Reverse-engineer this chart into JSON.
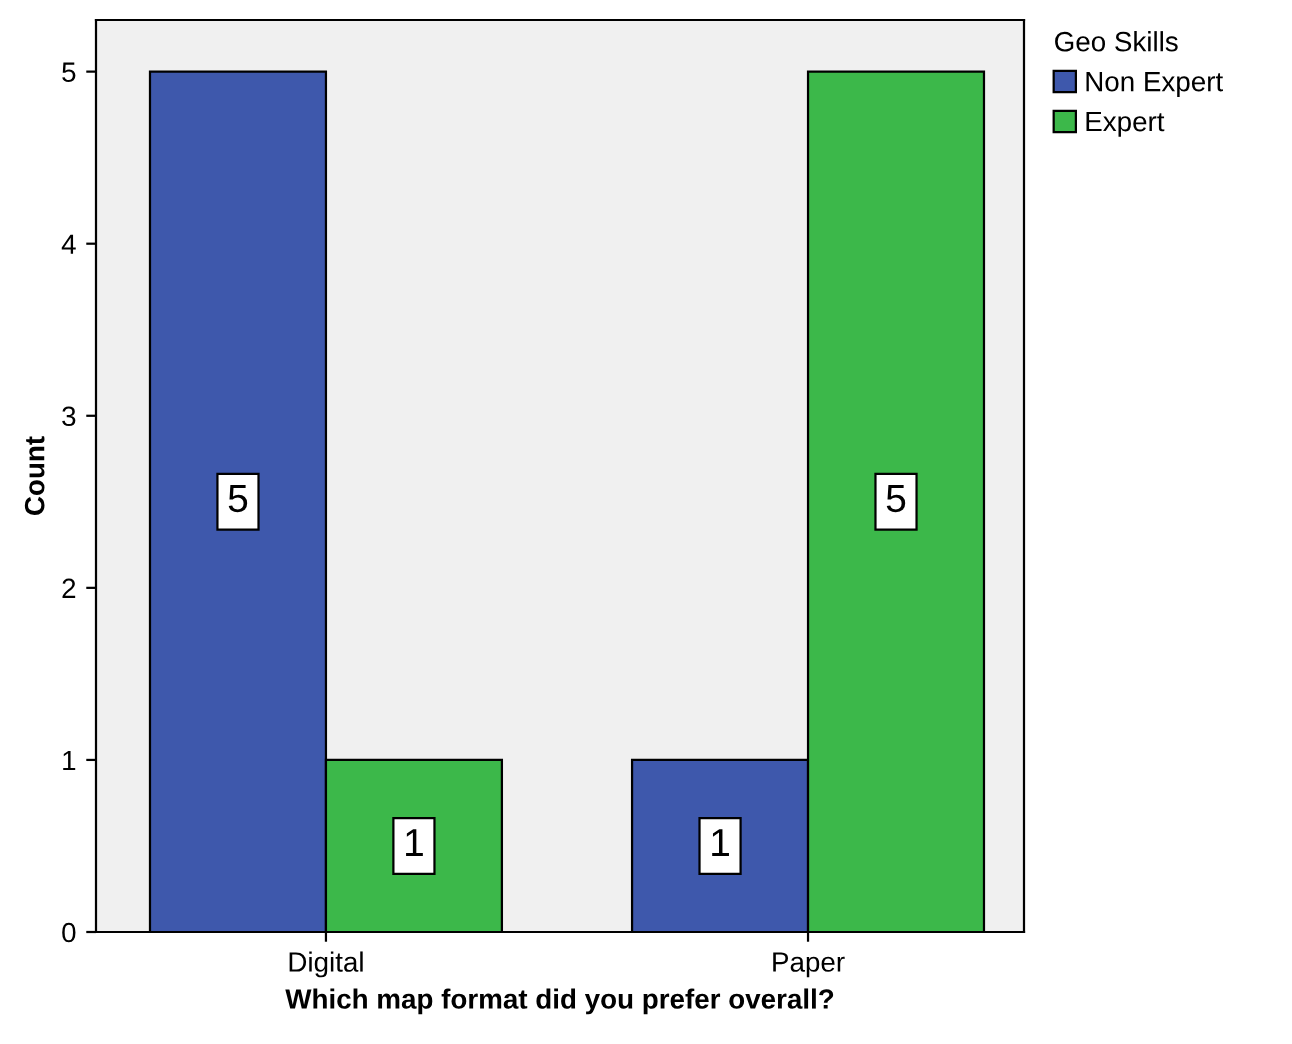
{
  "chart_data": {
    "type": "bar",
    "xlabel": "Which map format did you prefer overall?",
    "ylabel": "Count",
    "legend_title": "Geo Skills",
    "categories": [
      "Digital",
      "Paper"
    ],
    "series": [
      {
        "name": "Non Expert",
        "color": "#3e58ac",
        "values": [
          5,
          1
        ]
      },
      {
        "name": "Expert",
        "color": "#3cb84a",
        "values": [
          1,
          5
        ]
      }
    ],
    "ylim": [
      0,
      5.3
    ],
    "yticks": [
      0,
      1,
      2,
      3,
      4,
      5
    ],
    "grid": false,
    "legend": "top right",
    "data_labels": true
  }
}
